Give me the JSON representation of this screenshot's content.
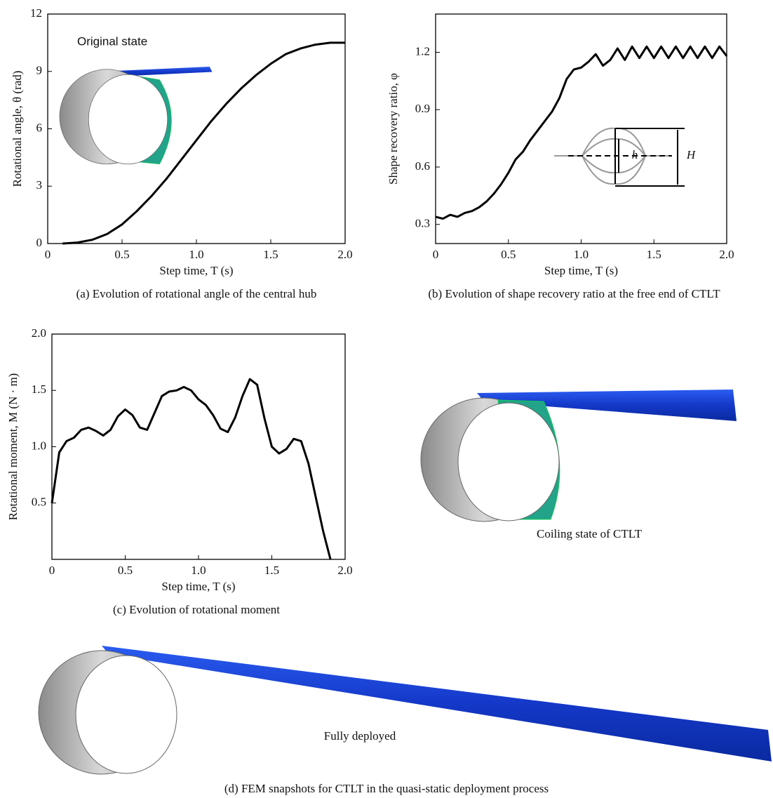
{
  "chart_data": [
    {
      "type": "line",
      "xlabel": "Step time, T (s)",
      "ylabel": "Rotational angle, θ (rad)",
      "caption": "(a) Evolution of rotational angle of the central hub",
      "annotations": [
        "Original state"
      ],
      "color": "#000000",
      "x": [
        0.1,
        0.2,
        0.3,
        0.4,
        0.5,
        0.6,
        0.7,
        0.8,
        0.9,
        1.0,
        1.1,
        1.2,
        1.3,
        1.4,
        1.5,
        1.6,
        1.7,
        1.8,
        1.9,
        2.0
      ],
      "values": [
        0,
        0.05,
        0.2,
        0.5,
        1.0,
        1.7,
        2.5,
        3.4,
        4.4,
        5.4,
        6.4,
        7.3,
        8.1,
        8.8,
        9.4,
        9.9,
        10.2,
        10.4,
        10.5,
        10.5
      ],
      "xlim": [
        0,
        2
      ],
      "xticks": [
        0,
        0.5,
        {
          "value": 1,
          "label": "1.0"
        },
        1.5,
        {
          "value": 2,
          "label": "2.0"
        }
      ],
      "ylim": [
        0,
        12
      ],
      "yticks": [
        0,
        3,
        6,
        9,
        12
      ]
    },
    {
      "type": "line",
      "xlabel": "Step time, T (s)",
      "ylabel": "Shape recovery ratio, φ",
      "caption": "(b) Evolution of shape recovery ratio at the free end of CTLT",
      "annotations": [
        "h",
        "H"
      ],
      "color": "#000000",
      "x": [
        0,
        0.05,
        0.1,
        0.15,
        0.2,
        0.25,
        0.3,
        0.35,
        0.4,
        0.45,
        0.5,
        0.55,
        0.6,
        0.65,
        0.7,
        0.75,
        0.8,
        0.85,
        0.9,
        0.95,
        1.0,
        1.05,
        1.1,
        1.15,
        1.2,
        1.25,
        1.3,
        1.35,
        1.4,
        1.45,
        1.5,
        1.55,
        1.6,
        1.65,
        1.7,
        1.75,
        1.8,
        1.85,
        1.9,
        1.95,
        2.0
      ],
      "values": [
        0.34,
        0.33,
        0.35,
        0.34,
        0.36,
        0.37,
        0.39,
        0.42,
        0.46,
        0.51,
        0.57,
        0.64,
        0.68,
        0.74,
        0.79,
        0.84,
        0.89,
        0.96,
        1.06,
        1.11,
        1.12,
        1.15,
        1.19,
        1.13,
        1.16,
        1.22,
        1.16,
        1.23,
        1.17,
        1.23,
        1.17,
        1.23,
        1.17,
        1.23,
        1.17,
        1.23,
        1.17,
        1.23,
        1.17,
        1.23,
        1.18
      ],
      "xlim": [
        0,
        2
      ],
      "xticks": [
        0,
        0.5,
        {
          "value": 1,
          "label": "1.0"
        },
        1.5,
        {
          "value": 2,
          "label": "2.0"
        }
      ],
      "ylim": [
        0.2,
        1.4
      ],
      "yticks": [
        0.3,
        0.6,
        0.9,
        1.2
      ]
    },
    {
      "type": "line",
      "xlabel": "Step time, T (s)",
      "ylabel": "Rotational moment, M (N · m)",
      "caption": "(c) Evolution of rotational moment",
      "annotations": [],
      "color": "#000000",
      "x": [
        0,
        0.05,
        0.1,
        0.15,
        0.2,
        0.25,
        0.3,
        0.35,
        0.4,
        0.45,
        0.5,
        0.55,
        0.6,
        0.65,
        0.7,
        0.75,
        0.8,
        0.85,
        0.9,
        0.95,
        1.0,
        1.05,
        1.1,
        1.15,
        1.2,
        1.25,
        1.3,
        1.35,
        1.4,
        1.45,
        1.5,
        1.55,
        1.6,
        1.65,
        1.7,
        1.75,
        1.8,
        1.85,
        1.9
      ],
      "values": [
        0.5,
        0.95,
        1.05,
        1.08,
        1.15,
        1.17,
        1.14,
        1.1,
        1.15,
        1.27,
        1.33,
        1.28,
        1.17,
        1.15,
        1.3,
        1.45,
        1.49,
        1.5,
        1.53,
        1.5,
        1.42,
        1.37,
        1.28,
        1.16,
        1.13,
        1.26,
        1.45,
        1.6,
        1.55,
        1.25,
        1.0,
        0.94,
        0.98,
        1.07,
        1.05,
        0.85,
        0.55,
        0.25,
        0.0
      ],
      "xlim": [
        0,
        2
      ],
      "xticks": [
        0,
        0.5,
        {
          "value": 1,
          "label": "1.0"
        },
        1.5,
        {
          "value": 2,
          "label": "2.0"
        }
      ],
      "ylim": [
        0,
        2
      ],
      "yticks": [
        0.5,
        {
          "value": 1,
          "label": "1.0"
        },
        1.5,
        {
          "value": 2,
          "label": "2.0"
        }
      ]
    }
  ],
  "snapshots": {
    "coiling_label": "Coiling state of CTLT",
    "deployed_label": "Fully deployed",
    "caption": "(d) FEM snapshots for CTLT in the quasi-static deployment process"
  }
}
